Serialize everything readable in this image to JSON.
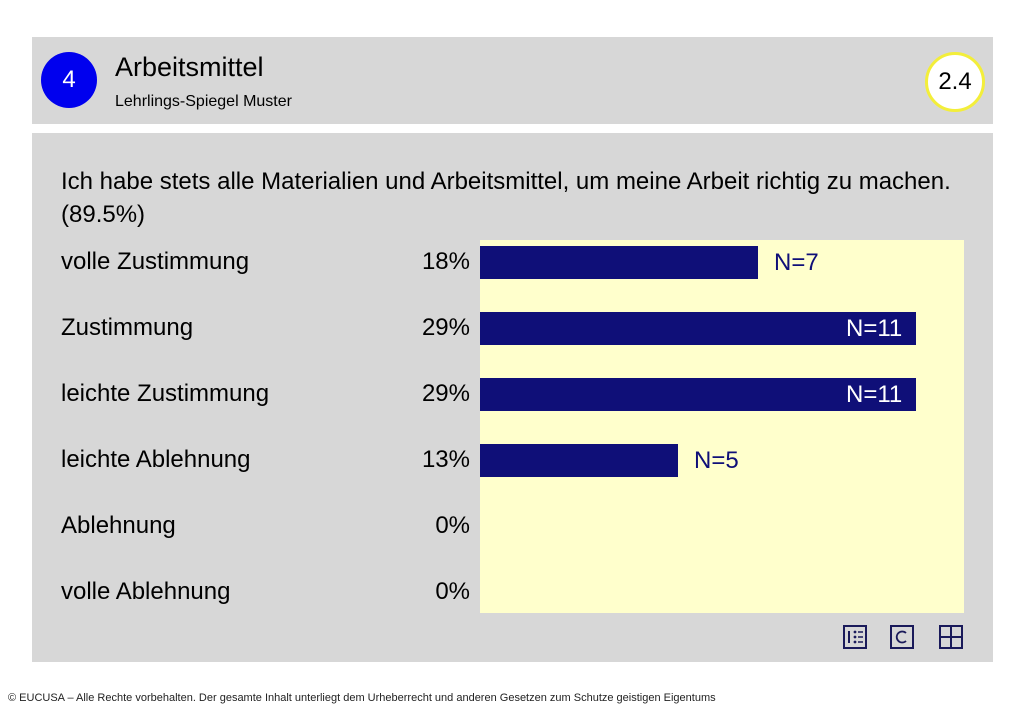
{
  "header": {
    "section_number": "4",
    "title": "Arbeitsmittel",
    "subtitle": "Lehrlings-Spiegel Muster",
    "page_number": "2.4"
  },
  "question": "Ich habe stets alle Materialien und Arbeitsmittel, um meine Arbeit richtig zu machen. (89.5%)",
  "chart_data": {
    "type": "bar",
    "orientation": "horizontal",
    "categories": [
      "volle Zustimmung",
      "Zustimmung",
      "leichte Zustimmung",
      "leichte Ablehnung",
      "Ablehnung",
      "volle Ablehnung"
    ],
    "percent_labels": [
      "18%",
      "29%",
      "29%",
      "13%",
      "0%",
      "0%"
    ],
    "values": [
      7,
      11,
      11,
      5,
      0,
      0
    ],
    "n_labels": [
      "N=7",
      "N=11",
      "N=11",
      "N=5",
      "",
      ""
    ],
    "xlim": [
      0,
      12.2
    ],
    "colors": {
      "bar": "#0f0f78",
      "background": "#ffffcc"
    }
  },
  "icons": [
    "list-icon",
    "c-icon",
    "grid-icon"
  ],
  "footer": "© EUCUSA – Alle Rechte vorbehalten. Der gesamte Inhalt unterliegt dem Urheberrecht und anderen Gesetzen zum Schutze geistigen Eigentums"
}
